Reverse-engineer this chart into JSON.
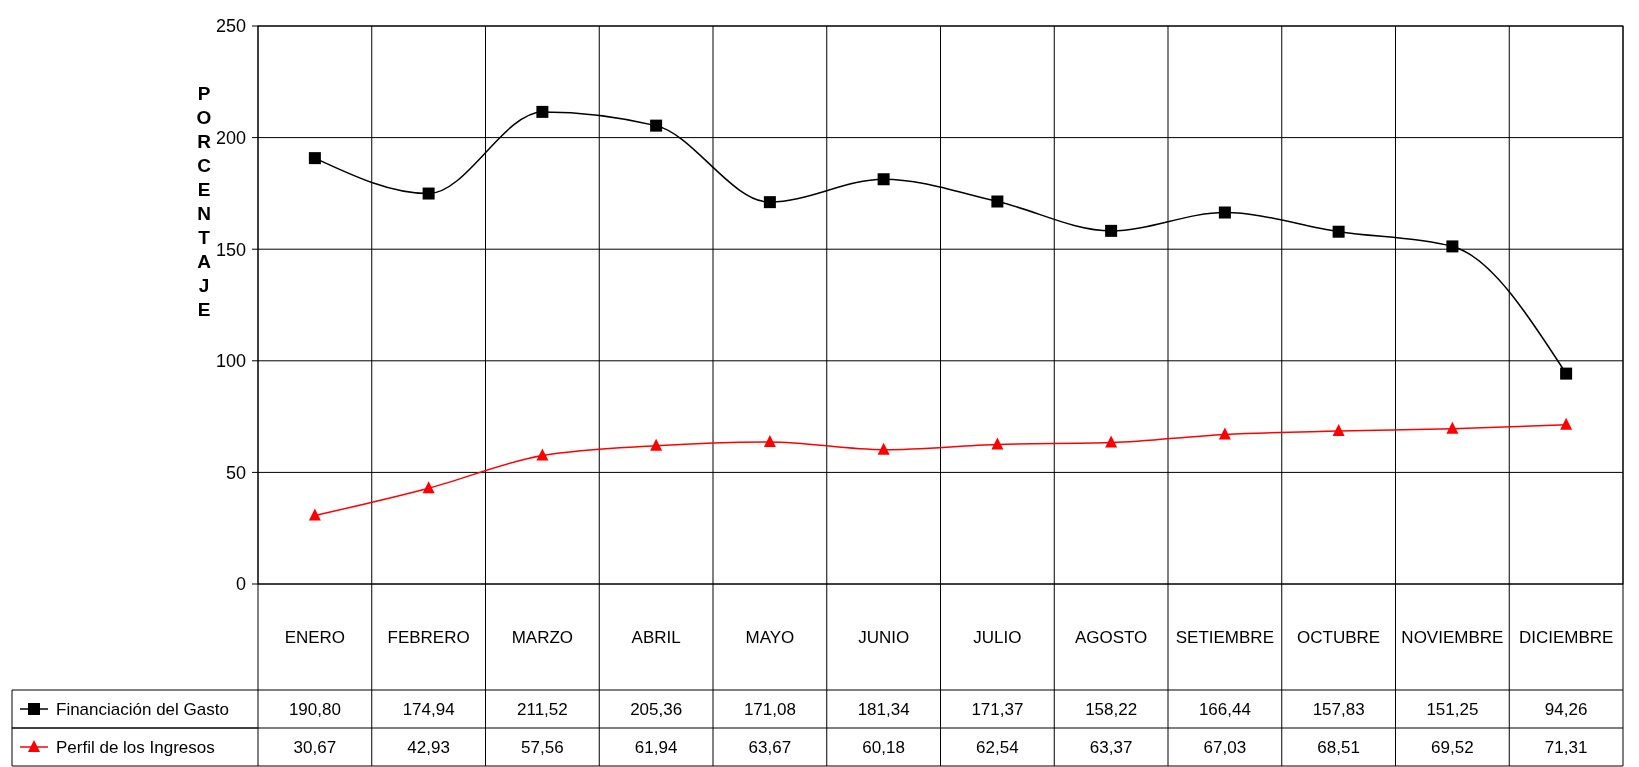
{
  "chart_data": {
    "type": "line",
    "ylabel": "PORCENTAJE",
    "categories": [
      "ENERO",
      "FEBRERO",
      "MARZO",
      "ABRIL",
      "MAYO",
      "JUNIO",
      "JULIO",
      "AGOSTO",
      "SETIEMBRE",
      "OCTUBRE",
      "NOVIEMBRE",
      "DICIEMBRE"
    ],
    "series": [
      {
        "name": "Financiación del Gasto",
        "color": "#000000",
        "marker": "square",
        "values": [
          190.8,
          174.94,
          211.52,
          205.36,
          171.08,
          181.34,
          171.37,
          158.22,
          166.44,
          157.83,
          151.25,
          94.26
        ],
        "value_labels": [
          "190,80",
          "174,94",
          "211,52",
          "205,36",
          "171,08",
          "181,34",
          "171,37",
          "158,22",
          "166,44",
          "157,83",
          "151,25",
          "94,26"
        ]
      },
      {
        "name": "Perfil de los Ingresos",
        "color": "#ff0000",
        "marker": "triangle",
        "values": [
          30.67,
          42.93,
          57.56,
          61.94,
          63.67,
          60.18,
          62.54,
          63.37,
          67.03,
          68.51,
          69.52,
          71.31
        ],
        "value_labels": [
          "30,67",
          "42,93",
          "57,56",
          "61,94",
          "63,67",
          "60,18",
          "62,54",
          "63,37",
          "67,03",
          "68,51",
          "69,52",
          "71,31"
        ]
      }
    ],
    "ylim": [
      0,
      250
    ],
    "yticks": [
      0,
      50,
      100,
      150,
      200,
      250
    ],
    "grid": true,
    "legend": "bottom"
  }
}
